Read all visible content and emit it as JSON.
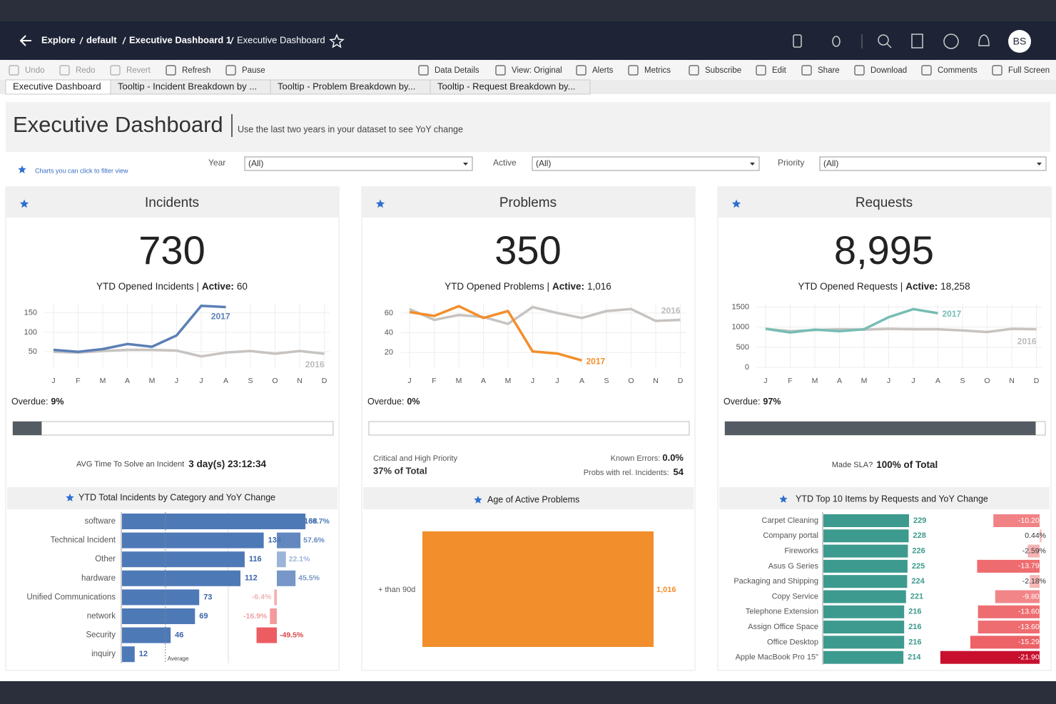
{
  "header": {
    "breadcrumbs": [
      "Explore",
      "default",
      "Executive Dashboard 1",
      "Executive Dashboard"
    ],
    "avatar": "BS"
  },
  "toolbar": [
    "Undo",
    "Redo",
    "Revert",
    "Refresh",
    "Pause",
    "Data Details",
    "View: Original",
    "Alerts",
    "Metrics",
    "Subscribe",
    "Edit",
    "Share",
    "Download",
    "Comments",
    "Full Screen"
  ],
  "tabs": [
    "Executive Dashboard",
    "Tooltip - Incident Breakdown by ...",
    "Tooltip - Problem Breakdown by...",
    "Tooltip - Request Breakdown by..."
  ],
  "dashboard": {
    "title": "Executive Dashboard",
    "subtitle": "Use the last two years in your dataset to see YoY change",
    "hint": "Charts you can click to filter view"
  },
  "filters": [
    {
      "label": "Year",
      "value": "(All)"
    },
    {
      "label": "Active",
      "value": "(All)"
    },
    {
      "label": "Priority",
      "value": "(All)"
    }
  ],
  "incidents": {
    "title": "Incidents",
    "kpi": "730",
    "caption": "YTD Opened Incidents |",
    "active_label": "Active:",
    "active_value": "60",
    "chart_data": {
      "type": "line",
      "categories": [
        "J",
        "F",
        "M",
        "A",
        "M",
        "J",
        "J",
        "A",
        "S",
        "O",
        "N",
        "D"
      ],
      "ylim": [
        10,
        175
      ],
      "yticks": [
        50,
        100,
        150
      ],
      "grid": true,
      "series": [
        {
          "name": "2017",
          "color": "#5b7fb5",
          "values": [
            55,
            50,
            57,
            70,
            63,
            92,
            168,
            165,
            null,
            null,
            null,
            null
          ]
        },
        {
          "name": "2016",
          "color": "#c7c3c0",
          "values": [
            50,
            48,
            52,
            55,
            55,
            53,
            38,
            48,
            52,
            45,
            52,
            45
          ]
        }
      ]
    },
    "overdue": {
      "label": "Overdue:",
      "value": 9,
      "value_label": "9%"
    },
    "avg": {
      "label": "AVG Time To Solve an Incident",
      "value": "3 day(s) 23:12:34"
    },
    "category_chart": {
      "type": "bar",
      "title": "YTD Total Incidents by Category and YoY Change",
      "color": "#4e79b7",
      "categories": [
        "software",
        "Technical Incident",
        "Other",
        "hardware",
        "Unified Communications",
        "network",
        "Security",
        "inquiry"
      ],
      "values": [
        168,
        134,
        116,
        112,
        73,
        69,
        46,
        12
      ],
      "yoy": {
        "values": [
          69.7,
          57.6,
          22.1,
          45.5,
          -6.4,
          -16.9,
          -49.5,
          null
        ],
        "value_labels": [
          "69.7%",
          "57.6%",
          "22.1%",
          "45.5%",
          "-6.4%",
          "-16.9%",
          "-49.5%",
          null
        ]
      },
      "average": {
        "label": "Average",
        "value": 41
      }
    }
  },
  "problems": {
    "title": "Problems",
    "kpi": "350",
    "caption": "YTD Opened Problems |",
    "active_label": "Active:",
    "active_value": "1,016",
    "chart_data": {
      "type": "line",
      "categories": [
        "J",
        "F",
        "M",
        "A",
        "M",
        "J",
        "J",
        "A",
        "S",
        "O",
        "N",
        "D"
      ],
      "ylim": [
        5,
        70
      ],
      "yticks": [
        20,
        40,
        60
      ],
      "grid": true,
      "series": [
        {
          "name": "2017",
          "color": "#f28e2b",
          "values": [
            61,
            57,
            67,
            55,
            62,
            21,
            19,
            12,
            null,
            null,
            null,
            null
          ]
        },
        {
          "name": "2016",
          "color": "#c7c3c0",
          "values": [
            64,
            53,
            58,
            56,
            49,
            66,
            60,
            55,
            62,
            64,
            52,
            53
          ]
        }
      ]
    },
    "overdue": {
      "label": "Overdue:",
      "value": 0,
      "value_label": "0%"
    },
    "priority": {
      "label": "Critical and High Priority",
      "value": "37% of Total"
    },
    "known_errors": {
      "label": "Known Errors:",
      "value": "0.0%"
    },
    "related": {
      "label": "Probs with rel. Incidents:",
      "value": "54"
    },
    "age_chart": {
      "type": "bar",
      "title": "Age of Active Problems",
      "categories": [
        "+ than 90d"
      ],
      "values": [
        1016
      ],
      "value_labels": [
        "1,016"
      ],
      "color": "#f28e2b"
    }
  },
  "requests": {
    "title": "Requests",
    "kpi": "8,995",
    "caption": "YTD Opened Requests |",
    "active_label": "Active:",
    "active_value": "18,258",
    "chart_data": {
      "type": "line",
      "categories": [
        "J",
        "F",
        "M",
        "A",
        "M",
        "J",
        "J",
        "A",
        "S",
        "O",
        "N",
        "D"
      ],
      "ylim": [
        0,
        1600
      ],
      "yticks": [
        0,
        500,
        1000,
        1500
      ],
      "grid": true,
      "series": [
        {
          "name": "2017",
          "color": "#76bdb4",
          "values": [
            960,
            870,
            940,
            900,
            950,
            1250,
            1450,
            1350,
            null,
            null,
            null,
            null
          ]
        },
        {
          "name": "2016",
          "color": "#c7c3c0",
          "values": [
            960,
            900,
            930,
            950,
            940,
            960,
            950,
            950,
            920,
            880,
            960,
            950
          ]
        }
      ]
    },
    "overdue": {
      "label": "Overdue:",
      "value": 97,
      "value_label": "97%"
    },
    "sla": {
      "label": "Made SLA?",
      "value": "100% of Total"
    },
    "top_chart": {
      "type": "bar",
      "title": "YTD Top 10 Items by Requests and YoY Change",
      "color": "#3d9a8e",
      "categories": [
        "Carpet Cleaning",
        "Company portal",
        "Fireworks",
        "Asus G Series",
        "Packaging and Shipping",
        "Copy Service",
        "Telephone Extension",
        "Assign Office Space",
        "Office Desktop",
        "Apple MacBook Pro 15\""
      ],
      "values": [
        229,
        228,
        226,
        225,
        224,
        221,
        216,
        216,
        216,
        214
      ],
      "yoy": {
        "values": [
          -10.2,
          0.44,
          -2.59,
          -13.79,
          -2.18,
          -9.8,
          -13.6,
          -13.6,
          -15.29,
          -21.9
        ],
        "value_labels": [
          "-10.20%",
          "0.44%",
          "-2.59%",
          "-13.79%",
          "-2.18%",
          "-9.80%",
          "-13.60%",
          "-13.60%",
          "-15.29%",
          "-21.90%"
        ]
      }
    }
  }
}
